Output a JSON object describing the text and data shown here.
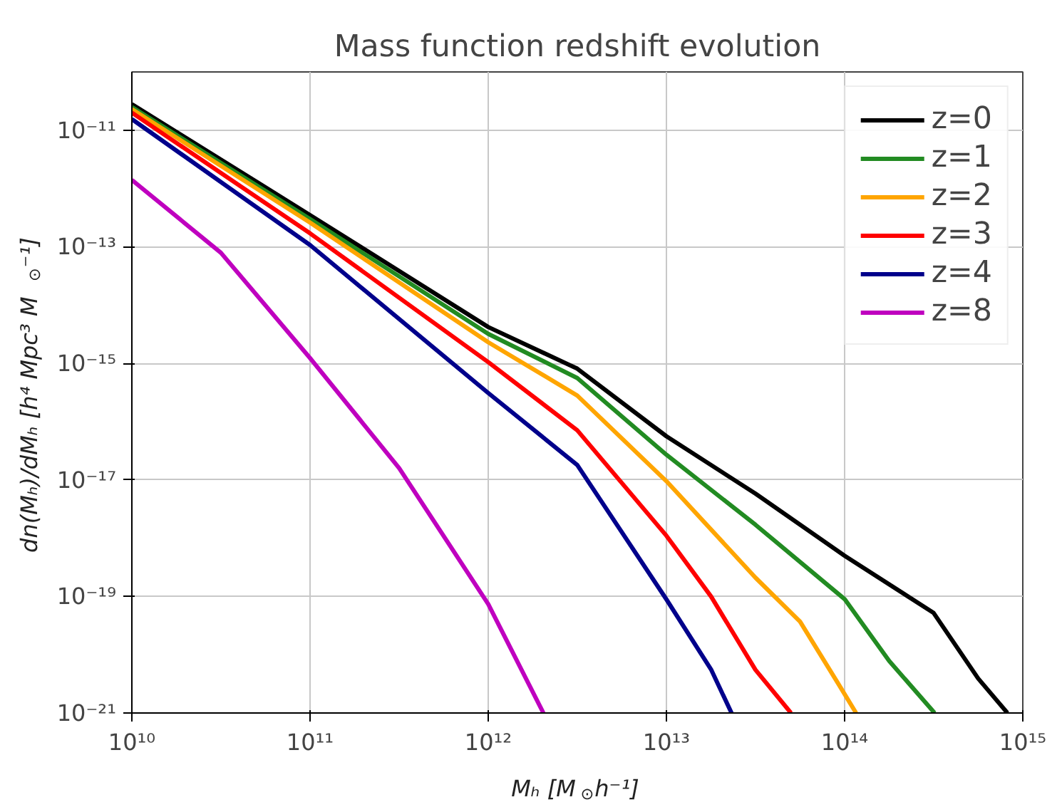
{
  "chart_data": {
    "type": "line",
    "title": "Mass function redshift evolution",
    "xlabel": "Mₕ [M$_{⊙}$h⁻¹]",
    "ylabel": "dn(Mₕ)/dMₕ [h⁴ Mpc³ M$_{⊙}$⁻¹]",
    "log": "xy",
    "grid": true,
    "legend": "top right",
    "line_style": "solid",
    "marker": "none",
    "xlim": [
      10000000000.0,
      1000000000000000.0
    ],
    "ylim": [
      1e-21,
      1e-10
    ],
    "xticks": [
      {
        "value": 10000000000.0,
        "label": "10¹⁰"
      },
      {
        "value": 100000000000.0,
        "label": "10¹¹"
      },
      {
        "value": 1000000000000.0,
        "label": "10¹²"
      },
      {
        "value": 10000000000000.0,
        "label": "10¹³"
      },
      {
        "value": 100000000000000.0,
        "label": "10¹⁴"
      },
      {
        "value": 1000000000000000.0,
        "label": "10¹⁵"
      }
    ],
    "yticks": [
      {
        "value": 1e-21,
        "label": "10⁻²¹"
      },
      {
        "value": 1e-19,
        "label": "10⁻¹⁹"
      },
      {
        "value": 1e-17,
        "label": "10⁻¹⁷"
      },
      {
        "value": 1e-15,
        "label": "10⁻¹⁵"
      },
      {
        "value": 1e-13,
        "label": "10⁻¹³"
      },
      {
        "value": 1e-11,
        "label": "10⁻¹¹"
      }
    ],
    "series": [
      {
        "name": "z=0",
        "color": "#000000",
        "x": [
          10000000000.0,
          100000000000.0,
          1000000000000.0,
          3160000000000.0,
          10000000000000.0,
          31600000000000.0,
          100000000000000.0,
          316000000000000.0,
          562000000000000.0,
          820000000000000.0
        ],
        "values": [
          2.8e-11,
          3.5e-13,
          4.2e-15,
          8.1e-16,
          5.6e-17,
          5.8e-18,
          5e-19,
          5.2e-20,
          3.9e-21,
          1e-21
        ]
      },
      {
        "name": "z=1",
        "color": "#228b22",
        "x": [
          10000000000.0,
          100000000000.0,
          1000000000000.0,
          3160000000000.0,
          10000000000000.0,
          31600000000000.0,
          100000000000000.0,
          178000000000000.0,
          320000000000000.0
        ],
        "values": [
          2.5e-11,
          3e-13,
          3.2e-15,
          5.6e-16,
          2.7e-17,
          1.7e-18,
          9e-20,
          7.8e-21,
          1e-21
        ]
      },
      {
        "name": "z=2",
        "color": "#ffa500",
        "x": [
          10000000000.0,
          100000000000.0,
          1000000000000.0,
          3160000000000.0,
          10000000000000.0,
          31600000000000.0,
          56200000000000.0,
          92000000000000.0,
          116000000000000.0
        ],
        "values": [
          2.3e-11,
          2.6e-13,
          2.3e-15,
          2.8e-16,
          9.5e-18,
          2.1e-19,
          3.7e-20,
          3.2e-21,
          1e-21
        ]
      },
      {
        "name": "z=3",
        "color": "#ff0000",
        "x": [
          10000000000.0,
          100000000000.0,
          1000000000000.0,
          3160000000000.0,
          10000000000000.0,
          17800000000000.0,
          31600000000000.0,
          50000000000000.0
        ],
        "values": [
          2e-11,
          1.7e-13,
          1.05e-15,
          7.1e-17,
          1.1e-18,
          1e-19,
          5.5e-21,
          1e-21
        ]
      },
      {
        "name": "z=4",
        "color": "#00008b",
        "x": [
          10000000000.0,
          100000000000.0,
          1000000000000.0,
          3160000000000.0,
          10000000000000.0,
          17800000000000.0,
          23200000000000.0
        ],
        "values": [
          1.55e-11,
          1.07e-13,
          3.1e-16,
          1.8e-17,
          8.9e-20,
          5.6e-21,
          1e-21
        ]
      },
      {
        "name": "z=8",
        "color": "#bf00bf",
        "x": [
          10000000000.0,
          31600000000.0,
          100000000000.0,
          316000000000.0,
          1000000000000.0,
          2040000000000.0
        ],
        "values": [
          1.4e-12,
          7.9e-14,
          1.23e-15,
          1.6e-17,
          7.4e-20,
          1e-21
        ]
      }
    ]
  }
}
